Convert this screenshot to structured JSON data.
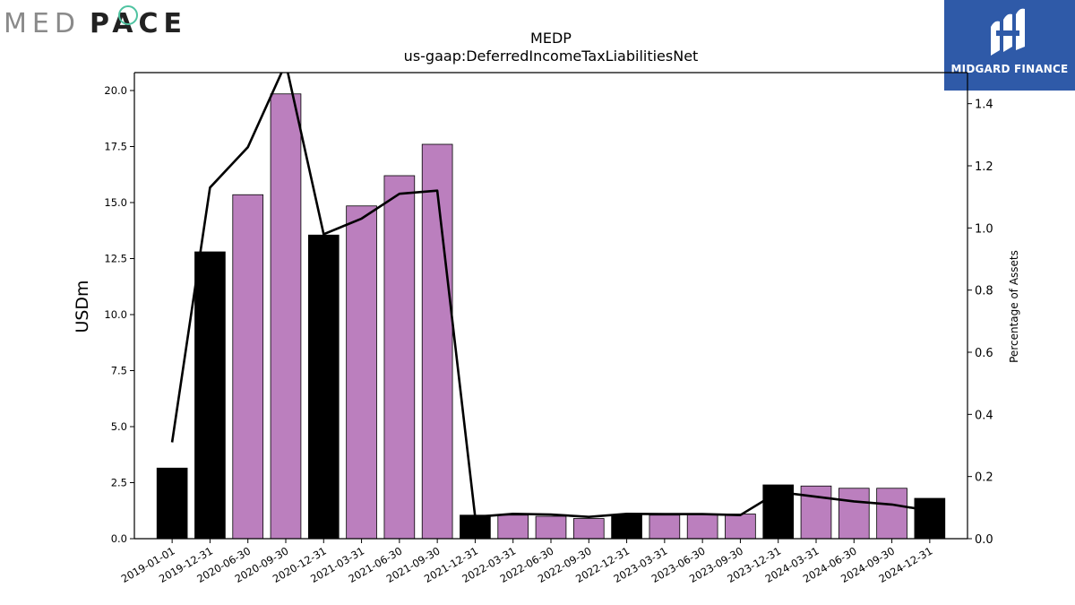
{
  "header": {
    "company_logo_light": "MED",
    "company_logo_bold": "PACE",
    "brand_name": "MIDGARD FINANCE"
  },
  "chart_data": {
    "type": "bar",
    "title": "MEDP",
    "subtitle": "us-gaap:DeferredIncomeTaxLiabilitiesNet",
    "ylabel": "USDm",
    "y2label": "Percentage of Assets",
    "ylim": [
      0,
      20.8
    ],
    "y2lim": [
      0,
      1.5
    ],
    "yticks": [
      "0.0",
      "2.5",
      "5.0",
      "7.5",
      "10.0",
      "12.5",
      "15.0",
      "17.5",
      "20.0"
    ],
    "y2ticks": [
      "0.0",
      "0.2",
      "0.4",
      "0.6",
      "0.8",
      "1.0",
      "1.2",
      "1.4"
    ],
    "categories": [
      "2019-01-01",
      "2019-12-31",
      "2020-06-30",
      "2020-09-30",
      "2020-12-31",
      "2021-03-31",
      "2021-06-30",
      "2021-09-30",
      "2021-12-31",
      "2022-03-31",
      "2022-06-30",
      "2022-09-30",
      "2022-12-31",
      "2023-03-31",
      "2023-06-30",
      "2023-09-30",
      "2023-12-31",
      "2024-03-31",
      "2024-06-30",
      "2024-09-30",
      "2024-12-31"
    ],
    "series": [
      {
        "kind": "bar",
        "values": [
          3.15,
          12.8,
          15.35,
          19.85,
          13.55,
          14.85,
          16.2,
          17.6,
          1.05,
          1.05,
          1.0,
          0.9,
          1.05,
          1.05,
          1.1,
          1.1,
          2.4,
          2.35,
          2.25,
          2.25,
          1.8
        ],
        "annual": [
          true,
          true,
          false,
          false,
          true,
          false,
          false,
          false,
          true,
          false,
          false,
          false,
          true,
          false,
          false,
          false,
          true,
          false,
          false,
          false,
          true
        ]
      },
      {
        "kind": "line",
        "axis": "right",
        "values": [
          0.31,
          1.13,
          1.26,
          1.53,
          0.98,
          1.03,
          1.11,
          1.12,
          0.07,
          0.08,
          0.078,
          0.07,
          0.08,
          0.079,
          0.079,
          0.076,
          0.15,
          0.135,
          0.12,
          0.11,
          0.09
        ]
      }
    ],
    "colors": {
      "annual": "#000000",
      "quarterly": "#bb7fbe",
      "line": "#000000"
    },
    "grid": false,
    "legend": "none"
  }
}
